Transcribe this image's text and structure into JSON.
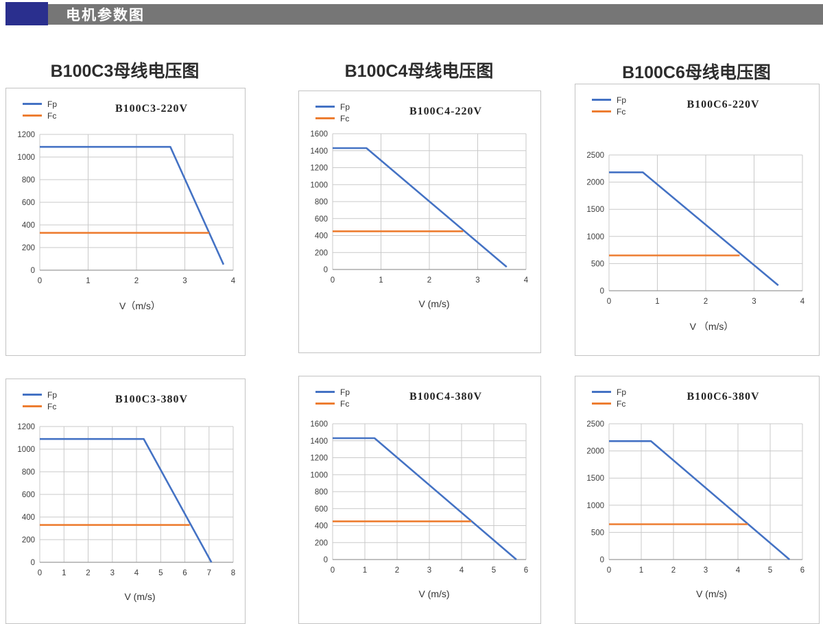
{
  "header": {
    "title": "电机参数图",
    "accent_color": "#2a2f8e",
    "bar_color": "#767676"
  },
  "section_titles": [
    "B100C3母线电压图",
    "B100C4母线电压图",
    "B100C6母线电压图"
  ],
  "colors": {
    "fp": "#4472c4",
    "fc": "#ed7d31"
  },
  "chart_data": [
    {
      "type": "line",
      "title": "B100C3-220V",
      "xlabel": "V（m/s）",
      "xlim": [
        0,
        4
      ],
      "ylim": [
        0,
        1200
      ],
      "xticks": [
        0,
        1,
        2,
        3,
        4
      ],
      "yticks": [
        0,
        200,
        400,
        600,
        800,
        1000,
        1200
      ],
      "grid": true,
      "legend_position": "top-left",
      "series": [
        {
          "name": "Fp",
          "color_key": "fp",
          "points": [
            [
              0,
              1090
            ],
            [
              2.7,
              1090
            ],
            [
              3.8,
              50
            ]
          ]
        },
        {
          "name": "Fc",
          "color_key": "fc",
          "points": [
            [
              0,
              330
            ],
            [
              3.5,
              330
            ]
          ]
        }
      ]
    },
    {
      "type": "line",
      "title": "B100C4-220V",
      "xlabel": "V (m/s)",
      "xlim": [
        0,
        4
      ],
      "ylim": [
        0,
        1600
      ],
      "xticks": [
        0,
        1,
        2,
        3,
        4
      ],
      "yticks": [
        0,
        200,
        400,
        600,
        800,
        1000,
        1200,
        1400,
        1600
      ],
      "grid": true,
      "legend_position": "top-left",
      "series": [
        {
          "name": "Fp",
          "color_key": "fp",
          "points": [
            [
              0,
              1430
            ],
            [
              0.7,
              1430
            ],
            [
              3.6,
              30
            ]
          ]
        },
        {
          "name": "Fc",
          "color_key": "fc",
          "points": [
            [
              0,
              450
            ],
            [
              2.7,
              450
            ]
          ]
        }
      ]
    },
    {
      "type": "line",
      "title": "B100C6-220V",
      "xlabel": "V （m/s）",
      "xlim": [
        0,
        4
      ],
      "ylim": [
        0,
        2500
      ],
      "xticks": [
        0,
        1,
        2,
        3,
        4
      ],
      "yticks": [
        0,
        500,
        1000,
        1500,
        2000,
        2500
      ],
      "grid": true,
      "legend_position": "top-left",
      "series": [
        {
          "name": "Fp",
          "color_key": "fp",
          "points": [
            [
              0,
              2180
            ],
            [
              0.7,
              2180
            ],
            [
              3.5,
              100
            ]
          ]
        },
        {
          "name": "Fc",
          "color_key": "fc",
          "points": [
            [
              0,
              650
            ],
            [
              2.7,
              650
            ]
          ]
        }
      ]
    },
    {
      "type": "line",
      "title": "B100C3-380V",
      "xlabel": "V (m/s)",
      "xlim": [
        0,
        8
      ],
      "ylim": [
        0,
        1200
      ],
      "xticks": [
        0,
        1,
        2,
        3,
        4,
        5,
        6,
        7,
        8
      ],
      "yticks": [
        0,
        200,
        400,
        600,
        800,
        1000,
        1200
      ],
      "grid": true,
      "legend_position": "top-left",
      "series": [
        {
          "name": "Fp",
          "color_key": "fp",
          "points": [
            [
              0,
              1090
            ],
            [
              4.3,
              1090
            ],
            [
              7.1,
              0
            ]
          ]
        },
        {
          "name": "Fc",
          "color_key": "fc",
          "points": [
            [
              0,
              330
            ],
            [
              6.2,
              330
            ]
          ]
        }
      ]
    },
    {
      "type": "line",
      "title": "B100C4-380V",
      "xlabel": "V (m/s)",
      "xlim": [
        0,
        6
      ],
      "ylim": [
        0,
        1600
      ],
      "xticks": [
        0,
        1,
        2,
        3,
        4,
        5,
        6
      ],
      "yticks": [
        0,
        200,
        400,
        600,
        800,
        1000,
        1200,
        1400,
        1600
      ],
      "grid": true,
      "legend_position": "top-left",
      "series": [
        {
          "name": "Fp",
          "color_key": "fp",
          "points": [
            [
              0,
              1430
            ],
            [
              1.3,
              1430
            ],
            [
              5.7,
              0
            ]
          ]
        },
        {
          "name": "Fc",
          "color_key": "fc",
          "points": [
            [
              0,
              450
            ],
            [
              4.3,
              450
            ]
          ]
        }
      ]
    },
    {
      "type": "line",
      "title": "B100C6-380V",
      "xlabel": "V (m/s)",
      "xlim": [
        0,
        6
      ],
      "ylim": [
        0,
        2500
      ],
      "xticks": [
        0,
        1,
        2,
        3,
        4,
        5,
        6
      ],
      "yticks": [
        0,
        500,
        1000,
        1500,
        2000,
        2500
      ],
      "grid": true,
      "legend_position": "top-left",
      "series": [
        {
          "name": "Fp",
          "color_key": "fp",
          "points": [
            [
              0,
              2180
            ],
            [
              1.3,
              2180
            ],
            [
              5.6,
              0
            ]
          ]
        },
        {
          "name": "Fc",
          "color_key": "fc",
          "points": [
            [
              0,
              650
            ],
            [
              4.3,
              650
            ]
          ]
        }
      ]
    }
  ]
}
